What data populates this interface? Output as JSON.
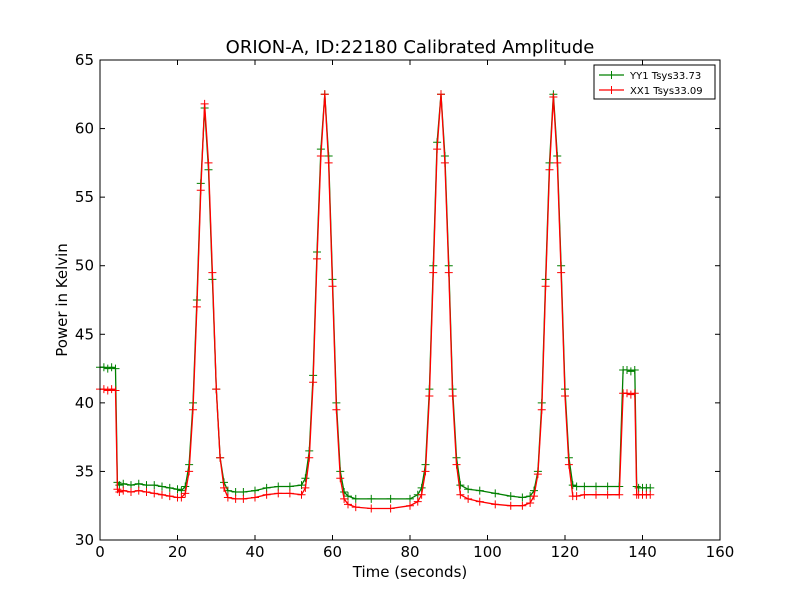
{
  "chart_data": {
    "type": "line",
    "title": "ORION-A, ID:22180 Calibrated Amplitude",
    "xlabel": "Time (seconds)",
    "ylabel": "Power in Kelvin",
    "xlim": [
      0,
      160
    ],
    "ylim": [
      30,
      65
    ],
    "xticks": [
      0,
      20,
      40,
      60,
      80,
      100,
      120,
      140,
      160
    ],
    "yticks": [
      30,
      35,
      40,
      45,
      50,
      55,
      60,
      65
    ],
    "grid": false,
    "legend_position": "top-right",
    "marker": "+",
    "series": [
      {
        "name": "YY1 Tsys33.73",
        "color": "#008000",
        "x": [
          0,
          1,
          2,
          3,
          4,
          4.5,
          5,
          6,
          8,
          10,
          12,
          14,
          16,
          18,
          20,
          21,
          22,
          23,
          24,
          25,
          26,
          27,
          28,
          29,
          30,
          31,
          32,
          33,
          35,
          37,
          40,
          43,
          46,
          49,
          52,
          53,
          54,
          55,
          56,
          57,
          58,
          59,
          60,
          61,
          62,
          63,
          64,
          66,
          70,
          75,
          80,
          82,
          83,
          84,
          85,
          86,
          87,
          88,
          89,
          90,
          91,
          92,
          93,
          95,
          98,
          102,
          106,
          109,
          111,
          112,
          113,
          114,
          115,
          116,
          117,
          118,
          119,
          120,
          121,
          122,
          123,
          125,
          128,
          131,
          134,
          135,
          136,
          137,
          138,
          138.5,
          139,
          140,
          141,
          142
        ],
        "values": [
          42.6,
          42.6,
          42.5,
          42.6,
          42.5,
          34.2,
          34.0,
          34.1,
          34.0,
          34.1,
          34.0,
          34.0,
          33.9,
          33.8,
          33.7,
          33.6,
          33.9,
          35.5,
          40.0,
          47.5,
          56.0,
          61.5,
          57.0,
          49.0,
          41.0,
          36.0,
          34.2,
          33.6,
          33.5,
          33.5,
          33.6,
          33.8,
          33.9,
          33.9,
          34.0,
          34.5,
          36.5,
          42.0,
          51.0,
          58.5,
          62.5,
          58.0,
          49.0,
          40.0,
          35.0,
          33.5,
          33.2,
          33.0,
          33.0,
          33.0,
          33.0,
          33.3,
          33.8,
          35.5,
          41.0,
          50.0,
          59.0,
          62.5,
          58.0,
          50.0,
          41.0,
          36.0,
          34.0,
          33.7,
          33.6,
          33.4,
          33.2,
          33.1,
          33.2,
          33.6,
          35.0,
          40.0,
          49.0,
          57.5,
          62.5,
          58.0,
          50.0,
          41.0,
          36.0,
          34.0,
          33.9,
          33.9,
          33.9,
          33.9,
          33.9,
          42.4,
          42.4,
          42.3,
          42.4,
          33.9,
          33.8,
          33.8,
          33.8,
          33.8
        ]
      },
      {
        "name": "XX1 Tsys33.09",
        "color": "#ff0000",
        "x": [
          0,
          1,
          2,
          3,
          4,
          4.5,
          5,
          6,
          8,
          10,
          12,
          14,
          16,
          18,
          20,
          21,
          22,
          23,
          24,
          25,
          26,
          27,
          28,
          29,
          30,
          31,
          32,
          33,
          35,
          37,
          40,
          43,
          46,
          49,
          52,
          53,
          54,
          55,
          56,
          57,
          58,
          59,
          60,
          61,
          62,
          63,
          64,
          66,
          70,
          75,
          80,
          82,
          83,
          84,
          85,
          86,
          87,
          88,
          89,
          90,
          91,
          92,
          93,
          95,
          98,
          102,
          106,
          109,
          111,
          112,
          113,
          114,
          115,
          116,
          117,
          118,
          119,
          120,
          121,
          122,
          123,
          125,
          128,
          131,
          134,
          135,
          136,
          137,
          138,
          138.5,
          139,
          140,
          141,
          142
        ],
        "values": [
          41.0,
          41.0,
          40.9,
          41.0,
          40.9,
          33.7,
          33.5,
          33.6,
          33.5,
          33.6,
          33.5,
          33.4,
          33.3,
          33.2,
          33.1,
          33.1,
          33.4,
          35.0,
          39.5,
          47.0,
          55.5,
          61.8,
          57.5,
          49.5,
          41.0,
          36.0,
          33.8,
          33.1,
          33.0,
          33.0,
          33.1,
          33.3,
          33.4,
          33.4,
          33.3,
          33.8,
          36.0,
          41.5,
          50.5,
          58.0,
          62.5,
          57.5,
          48.5,
          39.5,
          34.5,
          33.0,
          32.6,
          32.4,
          32.3,
          32.3,
          32.5,
          32.8,
          33.3,
          35.0,
          40.5,
          49.5,
          58.5,
          62.5,
          57.5,
          49.5,
          40.5,
          35.5,
          33.3,
          33.0,
          32.8,
          32.6,
          32.5,
          32.5,
          32.7,
          33.2,
          34.8,
          39.5,
          48.5,
          57.0,
          62.3,
          57.5,
          49.5,
          40.5,
          35.5,
          33.2,
          33.2,
          33.3,
          33.3,
          33.3,
          33.3,
          40.7,
          40.7,
          40.6,
          40.7,
          33.3,
          33.3,
          33.3,
          33.3,
          33.3
        ]
      }
    ]
  }
}
